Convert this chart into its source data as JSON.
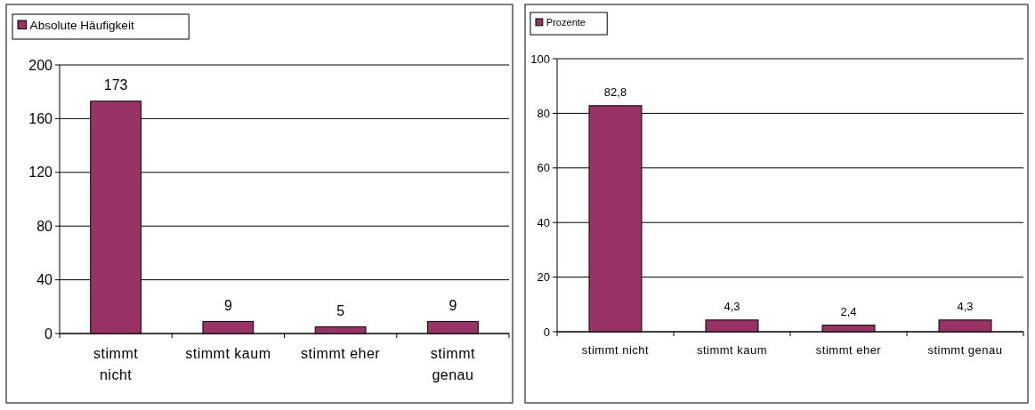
{
  "chart_data": [
    {
      "type": "bar",
      "categories": [
        "stimmt nicht",
        "stimmt kaum",
        "stimmt eher",
        "stimmt genau"
      ],
      "series": [
        {
          "name": "Absolute Häufigkeit",
          "color": "#993366",
          "values": [
            173,
            9,
            5,
            9
          ]
        }
      ],
      "ylim": [
        0,
        200
      ],
      "yticks": [
        0,
        40,
        80,
        120,
        160,
        200
      ],
      "grid": "y",
      "legend": "top left",
      "data_labels": true
    },
    {
      "type": "bar",
      "categories": [
        "stimmt nicht",
        "stimmt kaum",
        "stimmt eher",
        "stimmt genau"
      ],
      "series": [
        {
          "name": "Prozente",
          "color": "#993366",
          "values": [
            82.8,
            4.3,
            2.4,
            4.3
          ],
          "value_labels": [
            "82,8",
            "4,3",
            "2,4",
            "4,3"
          ]
        }
      ],
      "ylim": [
        0,
        100
      ],
      "yticks": [
        0,
        20,
        40,
        60,
        80,
        100
      ],
      "grid": "y",
      "legend": "top left"
    }
  ]
}
